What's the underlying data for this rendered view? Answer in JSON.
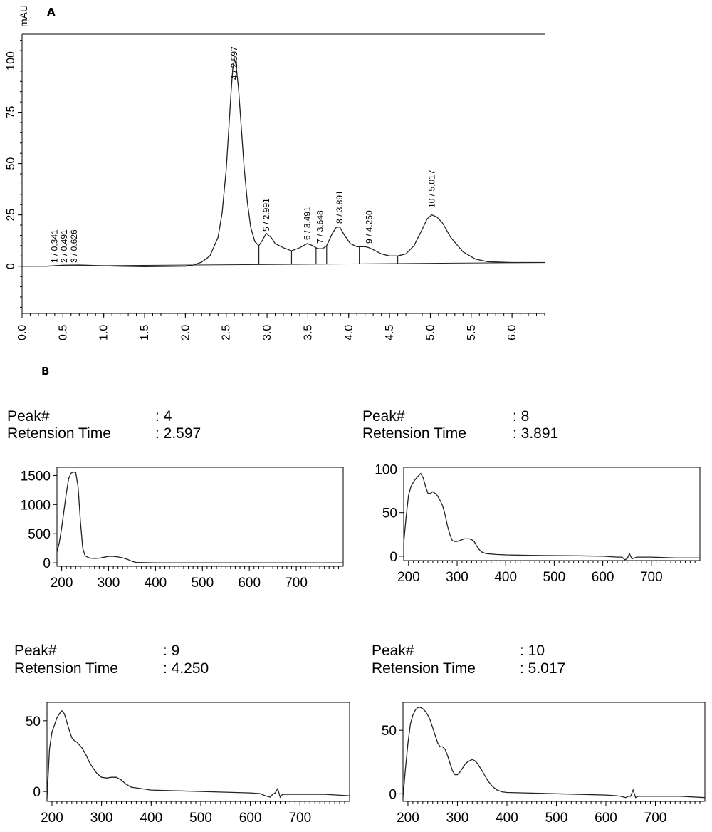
{
  "panel_a": {
    "letter": "A",
    "ylabel": "mAU"
  },
  "panel_b": {
    "letter": "B"
  },
  "spectra_meta": {
    "peak_label": "Peak#",
    "rt_label": "Retension Time"
  },
  "chart_data": [
    {
      "type": "line",
      "panel": "A",
      "ylabel": "mAU",
      "xlabel": "",
      "xlim": [
        0.0,
        6.4
      ],
      "ylim": [
        -23,
        113
      ],
      "x_ticks": [
        "0.0",
        "0.5",
        "1.0",
        "1.5",
        "2.0",
        "2.5",
        "3.0",
        "3.5",
        "4.0",
        "4.5",
        "5.0",
        "5.5",
        "6.0"
      ],
      "y_ticks": [
        "0",
        "25",
        "50",
        "75",
        "100"
      ],
      "peaks": [
        {
          "label": "1 / 0.341",
          "rt": 0.341,
          "height": 0.5
        },
        {
          "label": "2 / 0.491",
          "rt": 0.491,
          "height": 0.6
        },
        {
          "label": "3 / 0.626",
          "rt": 0.626,
          "height": 0.5
        },
        {
          "label": "4 / 2.597",
          "rt": 2.597,
          "height": 101
        },
        {
          "label": "5 / 2.991",
          "rt": 2.991,
          "height": 16
        },
        {
          "label": "6 / 3.491",
          "rt": 3.491,
          "height": 11
        },
        {
          "label": "7 / 3.648",
          "rt": 3.648,
          "height": 9
        },
        {
          "label": "8 / 3.891",
          "rt": 3.891,
          "height": 19
        },
        {
          "label": "9 / 4.250",
          "rt": 4.25,
          "height": 9
        },
        {
          "label": "10 / 5.017",
          "rt": 5.017,
          "height": 25
        }
      ],
      "peak_boundaries": [
        2.9,
        3.3,
        3.6,
        3.73,
        4.13,
        4.6
      ],
      "series": [
        {
          "x": [
            0.0,
            0.3,
            0.5,
            0.7,
            0.9,
            1.2,
            1.5,
            2.0,
            2.1,
            2.2,
            2.3,
            2.4,
            2.45,
            2.5,
            2.53,
            2.56,
            2.58,
            2.6,
            2.62,
            2.65,
            2.68,
            2.72,
            2.76,
            2.8,
            2.85,
            2.9,
            2.95,
            2.99,
            3.05,
            3.1,
            3.2,
            3.3,
            3.4,
            3.49,
            3.56,
            3.62,
            3.68,
            3.73,
            3.8,
            3.85,
            3.891,
            3.95,
            4.02,
            4.1,
            4.2,
            4.25,
            4.3,
            4.4,
            4.5,
            4.6,
            4.7,
            4.8,
            4.9,
            4.96,
            5.017,
            5.08,
            5.15,
            5.25,
            5.4,
            5.55,
            5.7,
            6.0,
            6.4
          ],
          "y": [
            0,
            0,
            0.5,
            0.6,
            0.3,
            0,
            -0.2,
            0,
            0.6,
            2,
            5,
            14,
            26,
            47,
            66,
            85,
            96,
            101,
            98,
            87,
            70,
            48,
            31,
            19,
            12,
            10,
            13,
            16,
            14,
            11,
            9,
            7.5,
            9,
            11,
            10,
            8.5,
            8.5,
            10,
            16,
            19,
            19,
            15,
            11,
            9.5,
            9.5,
            9,
            8,
            6,
            5,
            5,
            6,
            10,
            18,
            23,
            25,
            24,
            21,
            14,
            7,
            3.5,
            2.2,
            1.8,
            1.8
          ]
        }
      ]
    },
    {
      "type": "line",
      "panel": "B",
      "peak": ": 4",
      "retention_time": ": 2.597",
      "x_ticks": [
        "200",
        "300",
        "400",
        "500",
        "600",
        "700"
      ],
      "y_ticks": [
        "0",
        "500",
        "1000",
        "1500"
      ],
      "xlim": [
        190,
        800
      ],
      "ylim": [
        -60,
        1640
      ],
      "series": [
        {
          "x": [
            190,
            195,
            200,
            205,
            210,
            215,
            220,
            225,
            230,
            235,
            240,
            245,
            250,
            260,
            270,
            280,
            290,
            300,
            310,
            320,
            330,
            340,
            350,
            360,
            400,
            500,
            600,
            700,
            800
          ],
          "y": [
            180,
            350,
            600,
            900,
            1200,
            1450,
            1540,
            1560,
            1550,
            1300,
            700,
            250,
            120,
            80,
            75,
            80,
            95,
            110,
            110,
            100,
            85,
            60,
            25,
            5,
            0,
            0,
            0,
            0,
            0
          ]
        }
      ]
    },
    {
      "type": "line",
      "panel": "B",
      "peak": ": 8",
      "retention_time": ": 3.891",
      "x_ticks": [
        "200",
        "300",
        "400",
        "500",
        "600",
        "700"
      ],
      "y_ticks": [
        "0",
        "50",
        "100"
      ],
      "xlim": [
        190,
        800
      ],
      "ylim": [
        -5,
        102
      ],
      "series": [
        {
          "x": [
            190,
            195,
            200,
            205,
            210,
            215,
            220,
            225,
            230,
            235,
            240,
            245,
            250,
            255,
            260,
            265,
            270,
            275,
            280,
            285,
            290,
            295,
            300,
            305,
            310,
            315,
            320,
            325,
            330,
            335,
            340,
            345,
            350,
            360,
            380,
            400,
            450,
            500,
            550,
            600,
            630,
            640,
            645,
            650,
            655,
            660,
            670,
            700,
            750,
            800
          ],
          "y": [
            15,
            45,
            70,
            80,
            85,
            89,
            92,
            95,
            90,
            80,
            72,
            72,
            74,
            72,
            69,
            64,
            58,
            48,
            35,
            25,
            18,
            17,
            17,
            18,
            19,
            20,
            20,
            20,
            19,
            17,
            12,
            8,
            5,
            3,
            2,
            1.5,
            1,
            0.7,
            0.5,
            0,
            -1,
            -1,
            -4,
            -3,
            3,
            -3,
            -1,
            -1,
            -2,
            -2
          ]
        }
      ]
    },
    {
      "type": "line",
      "panel": "B",
      "peak": ": 9",
      "retention_time": ": 4.250",
      "x_ticks": [
        "200",
        "300",
        "400",
        "500",
        "600",
        "700"
      ],
      "y_ticks": [
        "0",
        "50"
      ],
      "xlim": [
        190,
        800
      ],
      "ylim": [
        -7,
        63
      ],
      "series": [
        {
          "x": [
            190,
            195,
            200,
            205,
            210,
            215,
            220,
            225,
            230,
            235,
            240,
            245,
            250,
            255,
            260,
            265,
            270,
            275,
            280,
            290,
            300,
            310,
            320,
            330,
            340,
            350,
            360,
            380,
            400,
            450,
            500,
            550,
            600,
            620,
            630,
            640,
            645,
            650,
            655,
            660,
            665,
            670,
            700,
            750,
            800
          ],
          "y": [
            -5,
            30,
            42,
            47,
            52,
            55,
            57,
            55,
            49,
            43,
            38,
            36,
            35,
            33,
            31,
            28,
            25,
            21,
            18,
            13,
            10,
            9.5,
            10,
            10,
            8,
            5,
            3,
            2,
            1,
            0.5,
            0,
            -0.5,
            -1,
            -1.5,
            -3,
            -4,
            -2,
            -1,
            2,
            -4,
            -2,
            -2,
            -2,
            -2,
            -3
          ]
        }
      ]
    },
    {
      "type": "line",
      "panel": "B",
      "peak": ": 10",
      "retention_time": ": 5.017",
      "x_ticks": [
        "200",
        "300",
        "400",
        "500",
        "600",
        "700"
      ],
      "y_ticks": [
        "0",
        "50"
      ],
      "xlim": [
        190,
        800
      ],
      "ylim": [
        -6,
        72
      ],
      "series": [
        {
          "x": [
            190,
            195,
            200,
            205,
            210,
            215,
            220,
            225,
            230,
            235,
            240,
            245,
            250,
            255,
            260,
            265,
            270,
            275,
            280,
            285,
            290,
            295,
            300,
            305,
            310,
            315,
            320,
            325,
            330,
            335,
            340,
            345,
            350,
            360,
            370,
            380,
            390,
            400,
            450,
            500,
            550,
            600,
            620,
            630,
            640,
            645,
            650,
            655,
            660,
            665,
            670,
            700,
            750,
            800
          ],
          "y": [
            -3,
            20,
            40,
            55,
            62,
            66,
            68,
            68,
            67,
            65,
            62,
            58,
            52,
            46,
            40,
            37,
            37,
            35,
            30,
            24,
            18,
            15,
            15,
            17,
            20,
            23,
            25,
            26,
            27,
            26,
            24,
            21,
            18,
            11,
            6,
            3,
            1.5,
            1,
            0.5,
            0,
            -0.5,
            -1,
            -1.5,
            -2,
            -3,
            -2,
            -2,
            3,
            -3,
            -2,
            -2,
            -2,
            -2,
            -3
          ]
        }
      ]
    }
  ]
}
